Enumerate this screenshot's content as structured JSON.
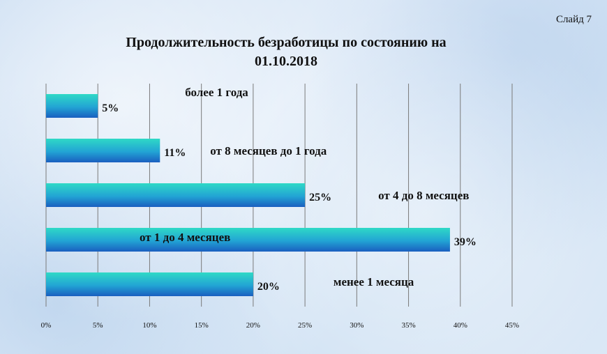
{
  "slide_label": "Слайд 7",
  "chart_data": {
    "type": "bar",
    "orientation": "horizontal",
    "title": "Продолжительность безработицы по состоянию на 01.10.2018",
    "title_lines": [
      "Продолжительность безработицы по состоянию на",
      "01.10.2018"
    ],
    "categories": [
      "более 1 года",
      "от 8 месяцев  до 1 года",
      "от 4 до 8 месяцев",
      "от 1 до 4 месяцев",
      "менее 1 месяца"
    ],
    "values": [
      5,
      11,
      25,
      39,
      20
    ],
    "value_labels": [
      "5%",
      "11%",
      "25%",
      "39%",
      "20%"
    ],
    "xlim": [
      0,
      45
    ],
    "x_ticks": [
      0,
      5,
      10,
      15,
      20,
      25,
      30,
      35,
      40,
      45
    ],
    "x_tick_labels": [
      "0%",
      "5%",
      "10%",
      "15%",
      "20%",
      "25%",
      "30%",
      "35%",
      "40%",
      "45%"
    ],
    "grid": true,
    "xlabel": "",
    "ylabel": "",
    "colors": {
      "bar_top": "#2fd9c6",
      "bar_bottom": "#1a5fc0",
      "grid": "#7a7a7a"
    }
  }
}
